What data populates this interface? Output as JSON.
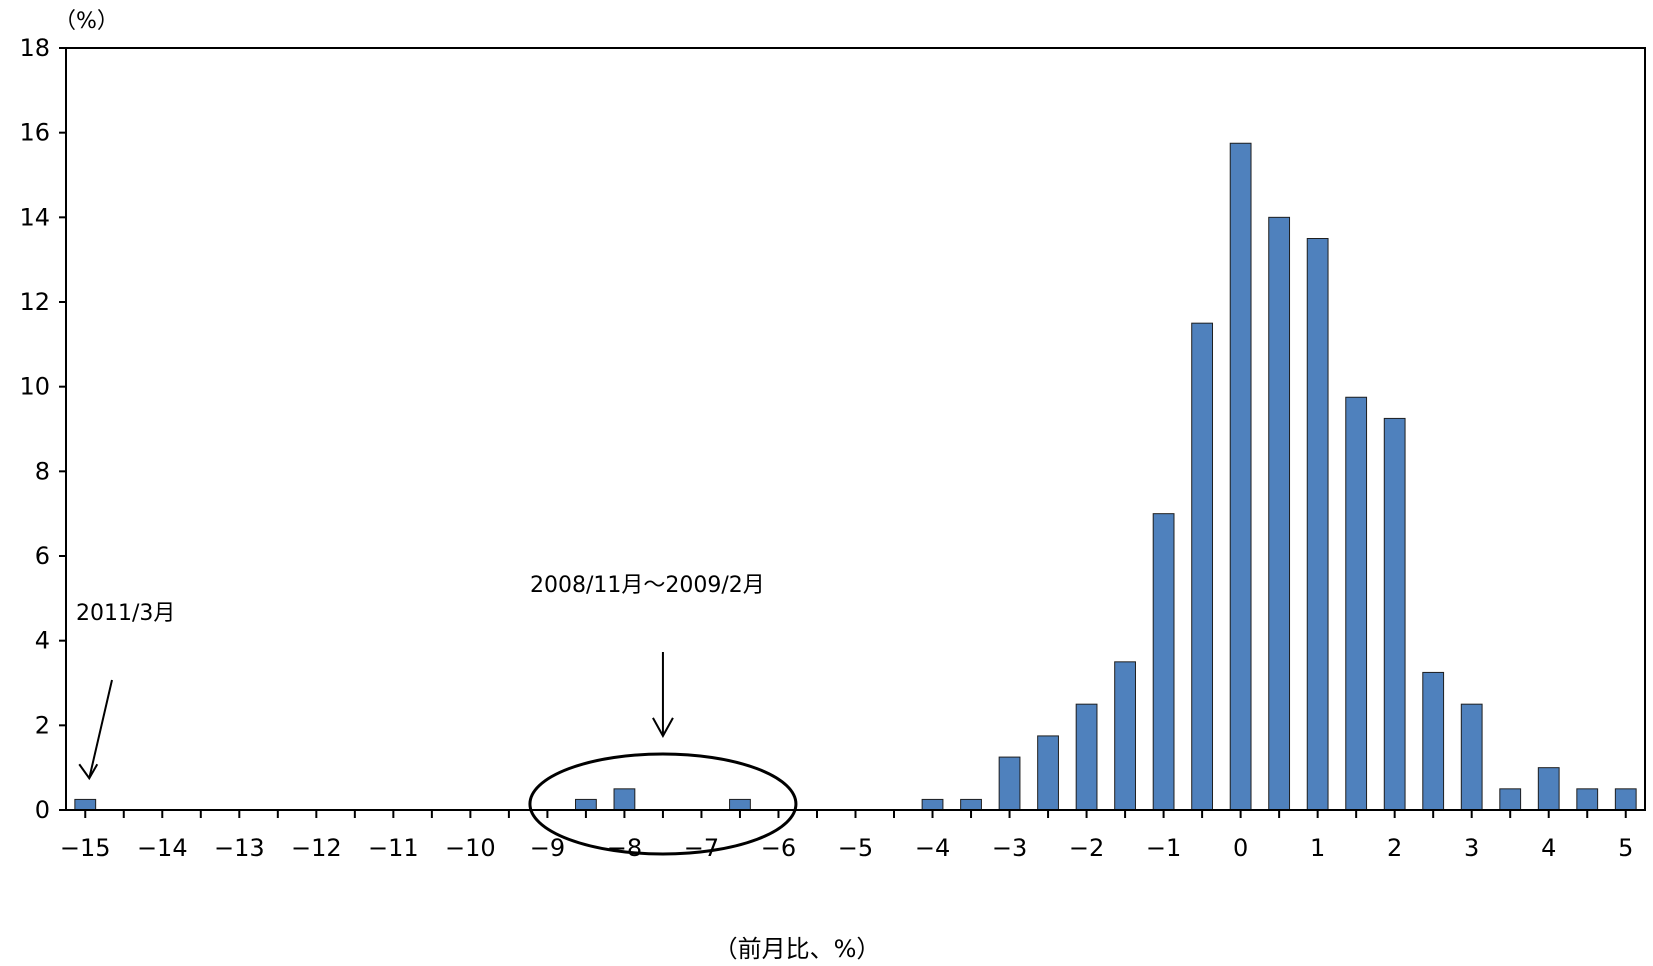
{
  "chart_data": {
    "type": "bar",
    "title": "",
    "ylabel": "（%）",
    "xlabel": "（前月比、%）",
    "ylim": [
      0,
      18
    ],
    "yticks": [
      0,
      2,
      4,
      6,
      8,
      10,
      12,
      14,
      16,
      18
    ],
    "xlim": [
      -15.25,
      5.25
    ],
    "xticks": [
      -15,
      -14,
      -13,
      -12,
      -11,
      -10,
      -9,
      -8,
      -7,
      -6,
      -5,
      -4,
      -3,
      -2,
      -1,
      0,
      1,
      2,
      3,
      4,
      5
    ],
    "xtick_labels": [
      "−15",
      "−14",
      "−13",
      "−12",
      "−11",
      "−10",
      "−9",
      "−8",
      "−7",
      "−6",
      "−5",
      "−4",
      "−3",
      "−2",
      "−1",
      "0",
      "1",
      "2",
      "3",
      "4",
      "5"
    ],
    "bar_color": "#4F81BD",
    "bars": [
      {
        "x": -15.0,
        "value": 0.25
      },
      {
        "x": -8.5,
        "value": 0.25
      },
      {
        "x": -8.0,
        "value": 0.5
      },
      {
        "x": -6.5,
        "value": 0.25
      },
      {
        "x": -4.0,
        "value": 0.25
      },
      {
        "x": -3.5,
        "value": 0.25
      },
      {
        "x": -3.0,
        "value": 1.25
      },
      {
        "x": -2.5,
        "value": 1.75
      },
      {
        "x": -2.0,
        "value": 2.5
      },
      {
        "x": -1.5,
        "value": 3.5
      },
      {
        "x": -1.0,
        "value": 7.0
      },
      {
        "x": -0.5,
        "value": 11.5
      },
      {
        "x": 0.0,
        "value": 15.75
      },
      {
        "x": 0.5,
        "value": 14.0
      },
      {
        "x": 1.0,
        "value": 13.5
      },
      {
        "x": 1.5,
        "value": 9.75
      },
      {
        "x": 2.0,
        "value": 9.25
      },
      {
        "x": 2.5,
        "value": 3.25
      },
      {
        "x": 3.0,
        "value": 2.5
      },
      {
        "x": 3.5,
        "value": 0.5
      },
      {
        "x": 4.0,
        "value": 1.0
      },
      {
        "x": 4.5,
        "value": 0.5
      },
      {
        "x": 5.0,
        "value": 0.5
      }
    ],
    "grid": false,
    "annotations": [
      {
        "text": "2011/3月",
        "target_x": -15.0
      },
      {
        "text": "2008/11月～2009/2月",
        "target_x": -7.5
      }
    ]
  }
}
